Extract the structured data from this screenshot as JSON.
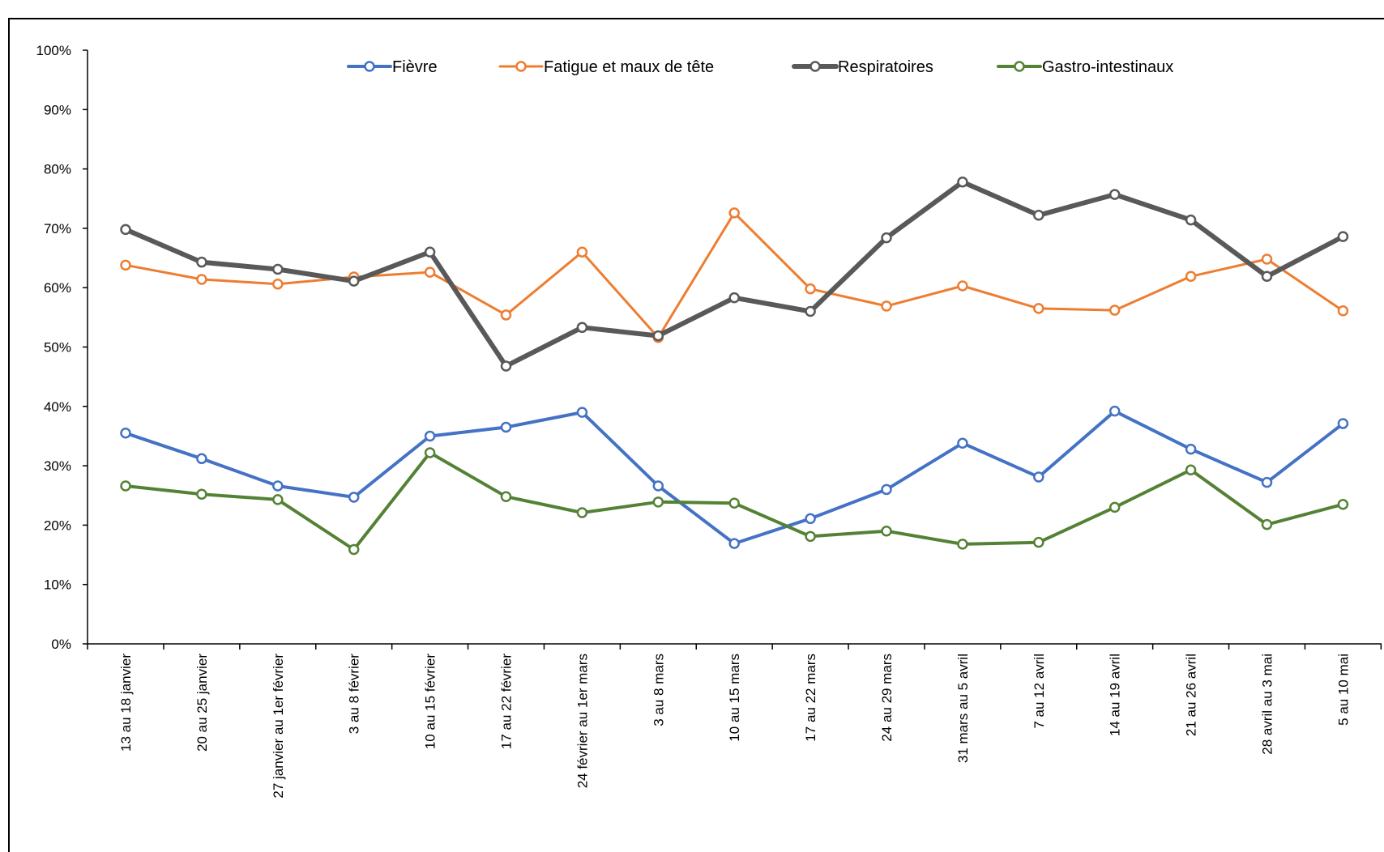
{
  "chart_data": {
    "type": "line",
    "title": "",
    "xlabel": "",
    "ylabel": "",
    "ylim": [
      0,
      100
    ],
    "y_ticks": [
      "0%",
      "10%",
      "20%",
      "30%",
      "40%",
      "50%",
      "60%",
      "70%",
      "80%",
      "90%",
      "100%"
    ],
    "grid": false,
    "legend_position": "top-center",
    "categories": [
      "13 au 18 janvier",
      "20 au 25 janvier",
      "27 janvier au 1er février",
      "3 au 8 février",
      "10 au 15 février",
      "17 au 22 février",
      "24 février au 1er mars",
      "3 au 8 mars",
      "10 au 15 mars",
      "17 au 22 mars",
      "24 au 29 mars",
      "31 mars au 5 avril",
      "7 au 12 avril",
      "14 au 19 avril",
      "21 au 26 avril",
      "28 avril au 3 mai",
      "5 au 10 mai"
    ],
    "series": [
      {
        "name": "Fièvre",
        "color": "#4472C4",
        "width": 4,
        "values": [
          35.5,
          31.2,
          26.6,
          24.7,
          35.0,
          36.5,
          39.0,
          26.6,
          16.9,
          21.1,
          26.0,
          33.8,
          28.1,
          39.2,
          32.8,
          27.2,
          37.1
        ]
      },
      {
        "name": "Fatigue et maux de tête",
        "color": "#ED7D31",
        "width": 3,
        "values": [
          63.8,
          61.4,
          60.6,
          61.8,
          62.6,
          55.4,
          66.0,
          51.6,
          72.6,
          59.8,
          56.9,
          60.3,
          56.5,
          56.2,
          61.9,
          64.8,
          56.1
        ]
      },
      {
        "name": "Respiratoires",
        "color": "#595959",
        "width": 6,
        "values": [
          69.8,
          64.3,
          63.1,
          61.1,
          66.0,
          46.8,
          53.3,
          51.9,
          58.3,
          56.0,
          68.4,
          77.8,
          72.2,
          75.7,
          71.4,
          61.9,
          68.6
        ]
      },
      {
        "name": "Gastro-intestinaux",
        "color": "#548235",
        "width": 4,
        "values": [
          26.6,
          25.2,
          24.3,
          15.9,
          32.2,
          24.8,
          22.1,
          23.9,
          23.7,
          18.1,
          19.0,
          16.8,
          17.1,
          23.0,
          29.3,
          20.1,
          23.5
        ]
      }
    ]
  }
}
